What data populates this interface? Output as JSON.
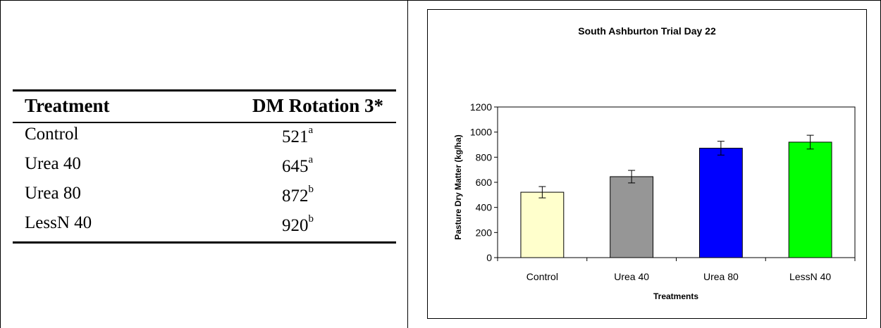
{
  "table": {
    "headers": [
      "Treatment",
      "DM Rotation 3*"
    ],
    "rows": [
      {
        "treatment": "Control",
        "value": "521",
        "sig": "a"
      },
      {
        "treatment": "Urea 40",
        "value": "645",
        "sig": "a"
      },
      {
        "treatment": "Urea 80",
        "value": "872",
        "sig": "b"
      },
      {
        "treatment": "LessN 40",
        "value": "920",
        "sig": "b"
      }
    ]
  },
  "chart_data": {
    "type": "bar",
    "title": "South Ashburton Trial Day 22",
    "xlabel": "Treatments",
    "ylabel": "Pasture Dry Matter (kg/ha)",
    "categories": [
      "Control",
      "Urea 40",
      "Urea 80",
      "LessN 40"
    ],
    "values": [
      521,
      645,
      872,
      920
    ],
    "errors": [
      45,
      50,
      55,
      55
    ],
    "colors": [
      "#ffffcc",
      "#969696",
      "#0000ff",
      "#00ff00"
    ],
    "ylim": [
      0,
      1200
    ],
    "yticks": [
      0,
      200,
      400,
      600,
      800,
      1000,
      1200
    ],
    "grid": false,
    "legend": "none"
  }
}
